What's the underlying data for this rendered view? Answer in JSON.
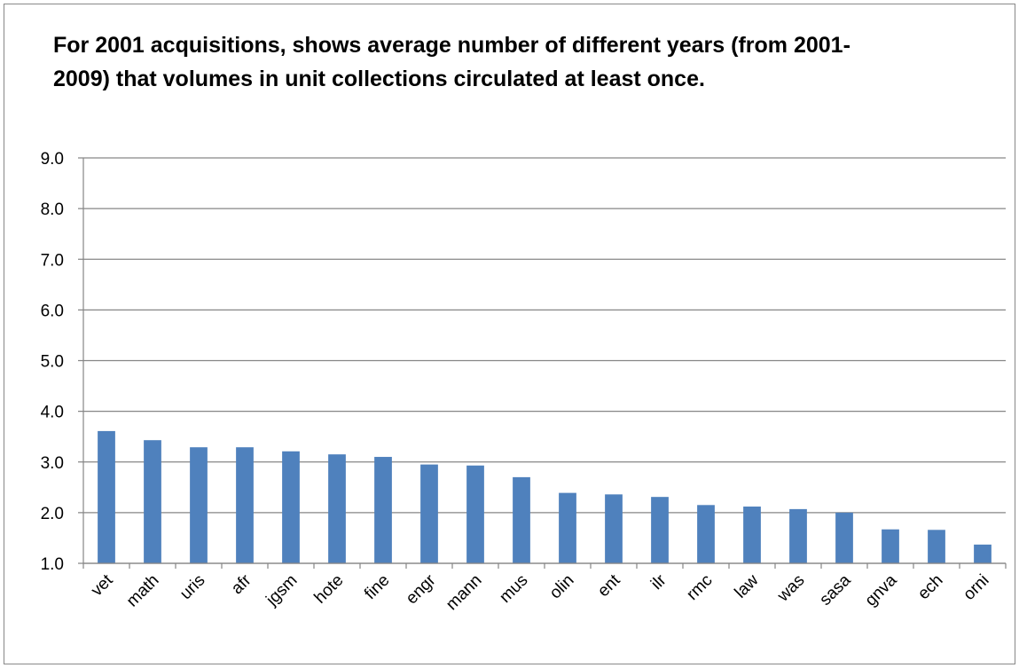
{
  "chart_data": {
    "type": "bar",
    "title": "For 2001 acquisitions, shows average number of different years (from 2001-2009) that volumes in unit collections circulated at least once.",
    "xlabel": "",
    "ylabel": "",
    "categories": [
      "vet",
      "math",
      "uris",
      "afr",
      "jgsm",
      "hote",
      "fine",
      "engr",
      "mann",
      "mus",
      "olin",
      "ent",
      "ilr",
      "rmc",
      "law",
      "was",
      "sasa",
      "gnva",
      "ech",
      "orni"
    ],
    "values": [
      3.61,
      3.43,
      3.29,
      3.29,
      3.21,
      3.15,
      3.1,
      2.95,
      2.93,
      2.7,
      2.39,
      2.36,
      2.31,
      2.15,
      2.12,
      2.07,
      2.0,
      1.67,
      1.66,
      1.37
    ],
    "ylim": [
      1.0,
      9.0
    ],
    "yticks": [
      "1.0",
      "2.0",
      "3.0",
      "4.0",
      "5.0",
      "6.0",
      "7.0",
      "8.0",
      "9.0"
    ],
    "grid": true,
    "legend": "none",
    "bar_color": "#4F81BD",
    "grid_color": "#868686"
  }
}
